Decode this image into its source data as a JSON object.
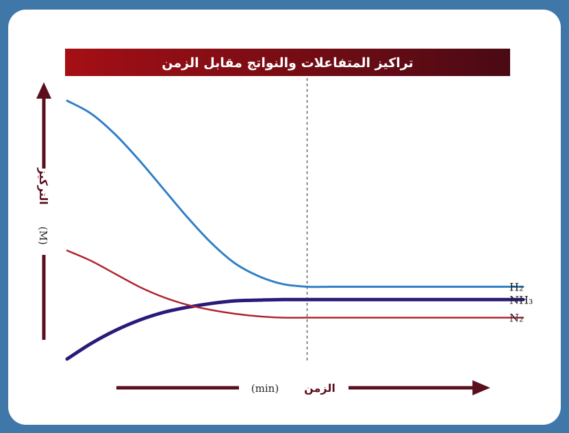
{
  "chart_data": {
    "type": "line",
    "title": "تراكيز المتفاعلات والنواتج مقابل الزمن",
    "xlabel": "الزمن",
    "xunit": "(min)",
    "ylabel": "التركيز",
    "yunit": "(M)",
    "x": [
      0,
      1,
      2,
      3,
      4,
      5,
      6,
      7,
      8,
      9,
      10,
      11,
      12,
      13,
      14,
      15,
      16,
      17,
      18,
      19
    ],
    "xlim": [
      0,
      19
    ],
    "ylim": [
      0,
      1
    ],
    "equilibrium_x": 10,
    "grid": false,
    "colors": {
      "title_bg_left": "#a50f15",
      "title_bg_right": "#4a0a14",
      "axis": "#5b0f1e"
    },
    "series": [
      {
        "name": "H₂",
        "color": "#2f7fc8",
        "values": [
          1.0,
          0.95,
          0.87,
          0.77,
          0.66,
          0.55,
          0.45,
          0.37,
          0.32,
          0.29,
          0.28,
          0.28,
          0.28,
          0.28,
          0.28,
          0.28,
          0.28,
          0.28,
          0.28,
          0.28
        ]
      },
      {
        "name": "NH₃",
        "color": "#2a1a7a",
        "values": [
          0.0,
          0.06,
          0.11,
          0.15,
          0.18,
          0.2,
          0.215,
          0.225,
          0.228,
          0.23,
          0.23,
          0.23,
          0.23,
          0.23,
          0.23,
          0.23,
          0.23,
          0.23,
          0.23,
          0.23
        ]
      },
      {
        "name": "N₂",
        "color": "#b0242e",
        "values": [
          0.42,
          0.38,
          0.33,
          0.28,
          0.24,
          0.21,
          0.19,
          0.175,
          0.165,
          0.16,
          0.16,
          0.16,
          0.16,
          0.16,
          0.16,
          0.16,
          0.16,
          0.16,
          0.16,
          0.16
        ]
      }
    ]
  }
}
